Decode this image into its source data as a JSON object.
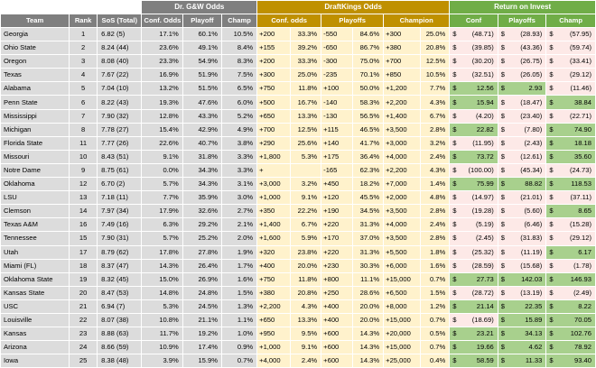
{
  "groups": {
    "gw": "Dr. G&W Odds",
    "dk": "DraftKings Odds",
    "ret": "Return on Invest"
  },
  "headers": {
    "team": "Team",
    "rank": "Rank",
    "sos": "SoS (Total)",
    "gw_conf": "Conf. Odds",
    "gw_playoff": "Playoff",
    "gw_champ": "Champ",
    "dk_conf": "Conf. odds",
    "dk_playoffs": "Playoffs",
    "dk_champion": "Champion",
    "ret_conf": "Conf",
    "ret_playoffs": "Playoffs",
    "ret_champ": "Champ"
  },
  "rows": [
    {
      "team": "Georgia",
      "rank": "1",
      "sos": "6.82 (5)",
      "gw_conf": "17.1%",
      "gw_playoff": "60.1%",
      "gw_champ": "10.5%",
      "dk_conf_line": "+200",
      "dk_conf_pct": "33.3%",
      "dk_po_line": "-550",
      "dk_po_pct": "84.6%",
      "dk_ch_line": "+300",
      "dk_ch_pct": "25.0%",
      "ret_conf_d": "$",
      "ret_conf": "(48.71)",
      "ret_conf_pos": false,
      "ret_po_d": "$",
      "ret_po": "(28.93)",
      "ret_po_pos": false,
      "ret_ch_d": "$",
      "ret_ch": "(57.95)",
      "ret_ch_pos": false
    },
    {
      "team": "Ohio State",
      "rank": "2",
      "sos": "8.24 (44)",
      "gw_conf": "23.6%",
      "gw_playoff": "49.1%",
      "gw_champ": "8.4%",
      "dk_conf_line": "+155",
      "dk_conf_pct": "39.2%",
      "dk_po_line": "-650",
      "dk_po_pct": "86.7%",
      "dk_ch_line": "+380",
      "dk_ch_pct": "20.8%",
      "ret_conf_d": "$",
      "ret_conf": "(39.85)",
      "ret_conf_pos": false,
      "ret_po_d": "$",
      "ret_po": "(43.36)",
      "ret_po_pos": false,
      "ret_ch_d": "$",
      "ret_ch": "(59.74)",
      "ret_ch_pos": false
    },
    {
      "team": "Oregon",
      "rank": "3",
      "sos": "8.08 (40)",
      "gw_conf": "23.3%",
      "gw_playoff": "54.9%",
      "gw_champ": "8.3%",
      "dk_conf_line": "+200",
      "dk_conf_pct": "33.3%",
      "dk_po_line": "-300",
      "dk_po_pct": "75.0%",
      "dk_ch_line": "+700",
      "dk_ch_pct": "12.5%",
      "ret_conf_d": "$",
      "ret_conf": "(30.20)",
      "ret_conf_pos": false,
      "ret_po_d": "$",
      "ret_po": "(26.75)",
      "ret_po_pos": false,
      "ret_ch_d": "$",
      "ret_ch": "(33.41)",
      "ret_ch_pos": false
    },
    {
      "team": "Texas",
      "rank": "4",
      "sos": "7.67 (22)",
      "gw_conf": "16.9%",
      "gw_playoff": "51.9%",
      "gw_champ": "7.5%",
      "dk_conf_line": "+300",
      "dk_conf_pct": "25.0%",
      "dk_po_line": "-235",
      "dk_po_pct": "70.1%",
      "dk_ch_line": "+850",
      "dk_ch_pct": "10.5%",
      "ret_conf_d": "$",
      "ret_conf": "(32.51)",
      "ret_conf_pos": false,
      "ret_po_d": "$",
      "ret_po": "(26.05)",
      "ret_po_pos": false,
      "ret_ch_d": "$",
      "ret_ch": "(29.12)",
      "ret_ch_pos": false
    },
    {
      "team": "Alabama",
      "rank": "5",
      "sos": "7.04 (10)",
      "gw_conf": "13.2%",
      "gw_playoff": "51.5%",
      "gw_champ": "6.5%",
      "dk_conf_line": "+750",
      "dk_conf_pct": "11.8%",
      "dk_po_line": "+100",
      "dk_po_pct": "50.0%",
      "dk_ch_line": "+1,200",
      "dk_ch_pct": "7.7%",
      "ret_conf_d": "$",
      "ret_conf": "12.56",
      "ret_conf_pos": true,
      "ret_po_d": "$",
      "ret_po": "2.93",
      "ret_po_pos": true,
      "ret_ch_d": "$",
      "ret_ch": "(11.46)",
      "ret_ch_pos": false
    },
    {
      "team": "Penn State",
      "rank": "6",
      "sos": "8.22 (43)",
      "gw_conf": "19.3%",
      "gw_playoff": "47.6%",
      "gw_champ": "6.0%",
      "dk_conf_line": "+500",
      "dk_conf_pct": "16.7%",
      "dk_po_line": "-140",
      "dk_po_pct": "58.3%",
      "dk_ch_line": "+2,200",
      "dk_ch_pct": "4.3%",
      "ret_conf_d": "$",
      "ret_conf": "15.94",
      "ret_conf_pos": true,
      "ret_po_d": "$",
      "ret_po": "(18.47)",
      "ret_po_pos": false,
      "ret_ch_d": "$",
      "ret_ch": "38.84",
      "ret_ch_pos": true
    },
    {
      "team": "Mississippi",
      "rank": "7",
      "sos": "7.90 (32)",
      "gw_conf": "12.8%",
      "gw_playoff": "43.3%",
      "gw_champ": "5.2%",
      "dk_conf_line": "+650",
      "dk_conf_pct": "13.3%",
      "dk_po_line": "-130",
      "dk_po_pct": "56.5%",
      "dk_ch_line": "+1,400",
      "dk_ch_pct": "6.7%",
      "ret_conf_d": "$",
      "ret_conf": "(4.20)",
      "ret_conf_pos": false,
      "ret_po_d": "$",
      "ret_po": "(23.40)",
      "ret_po_pos": false,
      "ret_ch_d": "$",
      "ret_ch": "(22.71)",
      "ret_ch_pos": false
    },
    {
      "team": "Michigan",
      "rank": "8",
      "sos": "7.78 (27)",
      "gw_conf": "15.4%",
      "gw_playoff": "42.9%",
      "gw_champ": "4.9%",
      "dk_conf_line": "+700",
      "dk_conf_pct": "12.5%",
      "dk_po_line": "+115",
      "dk_po_pct": "46.5%",
      "dk_ch_line": "+3,500",
      "dk_ch_pct": "2.8%",
      "ret_conf_d": "$",
      "ret_conf": "22.82",
      "ret_conf_pos": true,
      "ret_po_d": "$",
      "ret_po": "(7.80)",
      "ret_po_pos": false,
      "ret_ch_d": "$",
      "ret_ch": "74.90",
      "ret_ch_pos": true
    },
    {
      "team": "Florida State",
      "rank": "11",
      "sos": "7.77 (26)",
      "gw_conf": "22.6%",
      "gw_playoff": "40.7%",
      "gw_champ": "3.8%",
      "dk_conf_line": "+290",
      "dk_conf_pct": "25.6%",
      "dk_po_line": "+140",
      "dk_po_pct": "41.7%",
      "dk_ch_line": "+3,000",
      "dk_ch_pct": "3.2%",
      "ret_conf_d": "$",
      "ret_conf": "(11.95)",
      "ret_conf_pos": false,
      "ret_po_d": "$",
      "ret_po": "(2.43)",
      "ret_po_pos": false,
      "ret_ch_d": "$",
      "ret_ch": "18.18",
      "ret_ch_pos": true
    },
    {
      "team": "Missouri",
      "rank": "10",
      "sos": "8.43 (51)",
      "gw_conf": "9.1%",
      "gw_playoff": "31.8%",
      "gw_champ": "3.3%",
      "dk_conf_line": "+1,800",
      "dk_conf_pct": "5.3%",
      "dk_po_line": "+175",
      "dk_po_pct": "36.4%",
      "dk_ch_line": "+4,000",
      "dk_ch_pct": "2.4%",
      "ret_conf_d": "$",
      "ret_conf": "73.72",
      "ret_conf_pos": true,
      "ret_po_d": "$",
      "ret_po": "(12.61)",
      "ret_po_pos": false,
      "ret_ch_d": "$",
      "ret_ch": "35.60",
      "ret_ch_pos": true
    },
    {
      "team": "Notre Dame",
      "rank": "9",
      "sos": "8.75 (61)",
      "gw_conf": "0.0%",
      "gw_playoff": "34.3%",
      "gw_champ": "3.3%",
      "dk_conf_line": "+",
      "dk_conf_pct": "",
      "dk_po_line": "-165",
      "dk_po_pct": "62.3%",
      "dk_ch_line": "+2,200",
      "dk_ch_pct": "4.3%",
      "ret_conf_d": "$",
      "ret_conf": "(100.00)",
      "ret_conf_pos": false,
      "ret_po_d": "$",
      "ret_po": "(45.34)",
      "ret_po_pos": false,
      "ret_ch_d": "$",
      "ret_ch": "(24.73)",
      "ret_ch_pos": false
    },
    {
      "team": "Oklahoma",
      "rank": "12",
      "sos": "6.70 (2)",
      "gw_conf": "5.7%",
      "gw_playoff": "34.3%",
      "gw_champ": "3.1%",
      "dk_conf_line": "+3,000",
      "dk_conf_pct": "3.2%",
      "dk_po_line": "+450",
      "dk_po_pct": "18.2%",
      "dk_ch_line": "+7,000",
      "dk_ch_pct": "1.4%",
      "ret_conf_d": "$",
      "ret_conf": "75.99",
      "ret_conf_pos": true,
      "ret_po_d": "$",
      "ret_po": "88.82",
      "ret_po_pos": true,
      "ret_ch_d": "$",
      "ret_ch": "118.53",
      "ret_ch_pos": true
    },
    {
      "team": "LSU",
      "rank": "13",
      "sos": "7.18 (11)",
      "gw_conf": "7.7%",
      "gw_playoff": "35.9%",
      "gw_champ": "3.0%",
      "dk_conf_line": "+1,000",
      "dk_conf_pct": "9.1%",
      "dk_po_line": "+120",
      "dk_po_pct": "45.5%",
      "dk_ch_line": "+2,000",
      "dk_ch_pct": "4.8%",
      "ret_conf_d": "$",
      "ret_conf": "(14.97)",
      "ret_conf_pos": false,
      "ret_po_d": "$",
      "ret_po": "(21.01)",
      "ret_po_pos": false,
      "ret_ch_d": "$",
      "ret_ch": "(37.11)",
      "ret_ch_pos": false
    },
    {
      "team": "Clemson",
      "rank": "14",
      "sos": "7.97 (34)",
      "gw_conf": "17.9%",
      "gw_playoff": "32.6%",
      "gw_champ": "2.7%",
      "dk_conf_line": "+350",
      "dk_conf_pct": "22.2%",
      "dk_po_line": "+190",
      "dk_po_pct": "34.5%",
      "dk_ch_line": "+3,500",
      "dk_ch_pct": "2.8%",
      "ret_conf_d": "$",
      "ret_conf": "(19.28)",
      "ret_conf_pos": false,
      "ret_po_d": "$",
      "ret_po": "(5.60)",
      "ret_po_pos": false,
      "ret_ch_d": "$",
      "ret_ch": "8.65",
      "ret_ch_pos": true
    },
    {
      "team": "Texas A&M",
      "rank": "16",
      "sos": "7.49 (16)",
      "gw_conf": "6.3%",
      "gw_playoff": "29.2%",
      "gw_champ": "2.1%",
      "dk_conf_line": "+1,400",
      "dk_conf_pct": "6.7%",
      "dk_po_line": "+220",
      "dk_po_pct": "31.3%",
      "dk_ch_line": "+4,000",
      "dk_ch_pct": "2.4%",
      "ret_conf_d": "$",
      "ret_conf": "(5.19)",
      "ret_conf_pos": false,
      "ret_po_d": "$",
      "ret_po": "(6.46)",
      "ret_po_pos": false,
      "ret_ch_d": "$",
      "ret_ch": "(15.28)",
      "ret_ch_pos": false
    },
    {
      "team": "Tennessee",
      "rank": "15",
      "sos": "7.90 (31)",
      "gw_conf": "5.7%",
      "gw_playoff": "25.2%",
      "gw_champ": "2.0%",
      "dk_conf_line": "+1,600",
      "dk_conf_pct": "5.9%",
      "dk_po_line": "+170",
      "dk_po_pct": "37.0%",
      "dk_ch_line": "+3,500",
      "dk_ch_pct": "2.8%",
      "ret_conf_d": "$",
      "ret_conf": "(2.45)",
      "ret_conf_pos": false,
      "ret_po_d": "$",
      "ret_po": "(31.83)",
      "ret_po_pos": false,
      "ret_ch_d": "$",
      "ret_ch": "(29.12)",
      "ret_ch_pos": false
    },
    {
      "team": "Utah",
      "rank": "17",
      "sos": "8.79 (62)",
      "gw_conf": "17.8%",
      "gw_playoff": "27.8%",
      "gw_champ": "1.9%",
      "dk_conf_line": "+320",
      "dk_conf_pct": "23.8%",
      "dk_po_line": "+220",
      "dk_po_pct": "31.3%",
      "dk_ch_line": "+5,500",
      "dk_ch_pct": "1.8%",
      "ret_conf_d": "$",
      "ret_conf": "(25.32)",
      "ret_conf_pos": false,
      "ret_po_d": "$",
      "ret_po": "(11.19)",
      "ret_po_pos": false,
      "ret_ch_d": "$",
      "ret_ch": "6.17",
      "ret_ch_pos": true
    },
    {
      "team": "Miami (FL)",
      "rank": "18",
      "sos": "8.37 (47)",
      "gw_conf": "14.3%",
      "gw_playoff": "26.4%",
      "gw_champ": "1.7%",
      "dk_conf_line": "+400",
      "dk_conf_pct": "20.0%",
      "dk_po_line": "+230",
      "dk_po_pct": "30.3%",
      "dk_ch_line": "+6,000",
      "dk_ch_pct": "1.6%",
      "ret_conf_d": "$",
      "ret_conf": "(28.59)",
      "ret_conf_pos": false,
      "ret_po_d": "$",
      "ret_po": "(15.68)",
      "ret_po_pos": false,
      "ret_ch_d": "$",
      "ret_ch": "(1.78)",
      "ret_ch_pos": false
    },
    {
      "team": "Oklahoma State",
      "rank": "19",
      "sos": "8.32 (45)",
      "gw_conf": "15.0%",
      "gw_playoff": "26.9%",
      "gw_champ": "1.6%",
      "dk_conf_line": "+750",
      "dk_conf_pct": "11.8%",
      "dk_po_line": "+800",
      "dk_po_pct": "11.1%",
      "dk_ch_line": "+15,000",
      "dk_ch_pct": "0.7%",
      "ret_conf_d": "$",
      "ret_conf": "27.73",
      "ret_conf_pos": true,
      "ret_po_d": "$",
      "ret_po": "142.03",
      "ret_po_pos": true,
      "ret_ch_d": "$",
      "ret_ch": "146.93",
      "ret_ch_pos": true
    },
    {
      "team": "Kansas State",
      "rank": "20",
      "sos": "8.47 (53)",
      "gw_conf": "14.8%",
      "gw_playoff": "24.8%",
      "gw_champ": "1.5%",
      "dk_conf_line": "+380",
      "dk_conf_pct": "20.8%",
      "dk_po_line": "+250",
      "dk_po_pct": "28.6%",
      "dk_ch_line": "+6,500",
      "dk_ch_pct": "1.5%",
      "ret_conf_d": "$",
      "ret_conf": "(28.72)",
      "ret_conf_pos": false,
      "ret_po_d": "$",
      "ret_po": "(13.19)",
      "ret_po_pos": false,
      "ret_ch_d": "$",
      "ret_ch": "(2.49)",
      "ret_ch_pos": false
    },
    {
      "team": "USC",
      "rank": "21",
      "sos": "6.94 (7)",
      "gw_conf": "5.3%",
      "gw_playoff": "24.5%",
      "gw_champ": "1.3%",
      "dk_conf_line": "+2,200",
      "dk_conf_pct": "4.3%",
      "dk_po_line": "+400",
      "dk_po_pct": "20.0%",
      "dk_ch_line": "+8,000",
      "dk_ch_pct": "1.2%",
      "ret_conf_d": "$",
      "ret_conf": "21.14",
      "ret_conf_pos": true,
      "ret_po_d": "$",
      "ret_po": "22.35",
      "ret_po_pos": true,
      "ret_ch_d": "$",
      "ret_ch": "8.22",
      "ret_ch_pos": true
    },
    {
      "team": "Louisville",
      "rank": "22",
      "sos": "8.07 (38)",
      "gw_conf": "10.8%",
      "gw_playoff": "21.1%",
      "gw_champ": "1.1%",
      "dk_conf_line": "+650",
      "dk_conf_pct": "13.3%",
      "dk_po_line": "+400",
      "dk_po_pct": "20.0%",
      "dk_ch_line": "+15,000",
      "dk_ch_pct": "0.7%",
      "ret_conf_d": "$",
      "ret_conf": "(18.69)",
      "ret_conf_pos": false,
      "ret_po_d": "$",
      "ret_po": "15.89",
      "ret_po_pos": true,
      "ret_ch_d": "$",
      "ret_ch": "70.05",
      "ret_ch_pos": true
    },
    {
      "team": "Kansas",
      "rank": "23",
      "sos": "8.88 (63)",
      "gw_conf": "11.7%",
      "gw_playoff": "19.2%",
      "gw_champ": "1.0%",
      "dk_conf_line": "+950",
      "dk_conf_pct": "9.5%",
      "dk_po_line": "+600",
      "dk_po_pct": "14.3%",
      "dk_ch_line": "+20,000",
      "dk_ch_pct": "0.5%",
      "ret_conf_d": "$",
      "ret_conf": "23.21",
      "ret_conf_pos": true,
      "ret_po_d": "$",
      "ret_po": "34.13",
      "ret_po_pos": true,
      "ret_ch_d": "$",
      "ret_ch": "102.76",
      "ret_ch_pos": true
    },
    {
      "team": "Arizona",
      "rank": "24",
      "sos": "8.66 (59)",
      "gw_conf": "10.9%",
      "gw_playoff": "17.4%",
      "gw_champ": "0.9%",
      "dk_conf_line": "+1,000",
      "dk_conf_pct": "9.1%",
      "dk_po_line": "+600",
      "dk_po_pct": "14.3%",
      "dk_ch_line": "+15,000",
      "dk_ch_pct": "0.7%",
      "ret_conf_d": "$",
      "ret_conf": "19.66",
      "ret_conf_pos": true,
      "ret_po_d": "$",
      "ret_po": "4.62",
      "ret_po_pos": true,
      "ret_ch_d": "$",
      "ret_ch": "78.92",
      "ret_ch_pos": true
    },
    {
      "team": "Iowa",
      "rank": "25",
      "sos": "8.38 (48)",
      "gw_conf": "3.9%",
      "gw_playoff": "15.9%",
      "gw_champ": "0.7%",
      "dk_conf_line": "+4,000",
      "dk_conf_pct": "2.4%",
      "dk_po_line": "+600",
      "dk_po_pct": "14.3%",
      "dk_ch_line": "+25,000",
      "dk_ch_pct": "0.4%",
      "ret_conf_d": "$",
      "ret_conf": "58.59",
      "ret_conf_pos": true,
      "ret_po_d": "$",
      "ret_po": "11.33",
      "ret_po_pos": true,
      "ret_ch_d": "$",
      "ret_ch": "93.40",
      "ret_ch_pos": true
    }
  ]
}
